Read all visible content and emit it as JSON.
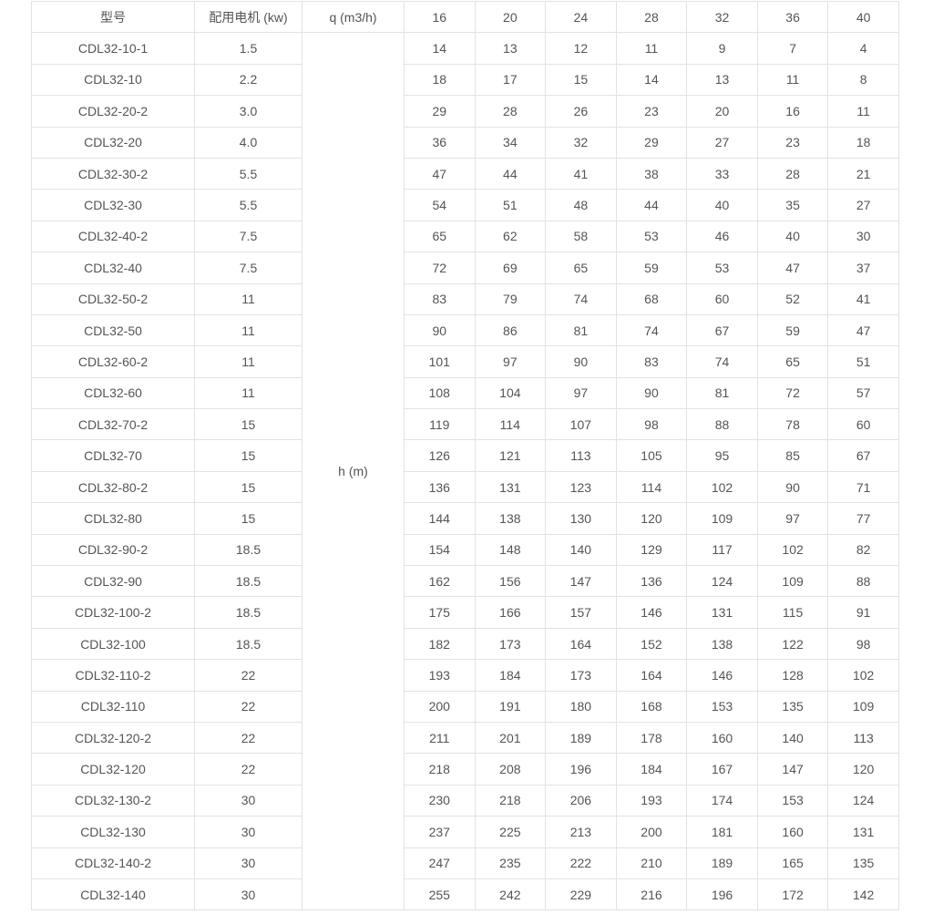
{
  "table": {
    "header": {
      "model": "型号",
      "motor": "配用电机 (kw)",
      "flow": "q (m3/h)",
      "flows": [
        "16",
        "20",
        "24",
        "28",
        "32",
        "36",
        "40"
      ]
    },
    "head_label": "h (m)",
    "rows": [
      {
        "model": "CDL32-10-1",
        "kw": "1.5",
        "h": [
          "14",
          "13",
          "12",
          "11",
          "9",
          "7",
          "4"
        ]
      },
      {
        "model": "CDL32-10",
        "kw": "2.2",
        "h": [
          "18",
          "17",
          "15",
          "14",
          "13",
          "11",
          "8"
        ]
      },
      {
        "model": "CDL32-20-2",
        "kw": "3.0",
        "h": [
          "29",
          "28",
          "26",
          "23",
          "20",
          "16",
          "11"
        ]
      },
      {
        "model": "CDL32-20",
        "kw": "4.0",
        "h": [
          "36",
          "34",
          "32",
          "29",
          "27",
          "23",
          "18"
        ]
      },
      {
        "model": "CDL32-30-2",
        "kw": "5.5",
        "h": [
          "47",
          "44",
          "41",
          "38",
          "33",
          "28",
          "21"
        ]
      },
      {
        "model": "CDL32-30",
        "kw": "5.5",
        "h": [
          "54",
          "51",
          "48",
          "44",
          "40",
          "35",
          "27"
        ]
      },
      {
        "model": "CDL32-40-2",
        "kw": "7.5",
        "h": [
          "65",
          "62",
          "58",
          "53",
          "46",
          "40",
          "30"
        ]
      },
      {
        "model": "CDL32-40",
        "kw": "7.5",
        "h": [
          "72",
          "69",
          "65",
          "59",
          "53",
          "47",
          "37"
        ]
      },
      {
        "model": "CDL32-50-2",
        "kw": "11",
        "h": [
          "83",
          "79",
          "74",
          "68",
          "60",
          "52",
          "41"
        ]
      },
      {
        "model": "CDL32-50",
        "kw": "11",
        "h": [
          "90",
          "86",
          "81",
          "74",
          "67",
          "59",
          "47"
        ]
      },
      {
        "model": "CDL32-60-2",
        "kw": "11",
        "h": [
          "101",
          "97",
          "90",
          "83",
          "74",
          "65",
          "51"
        ]
      },
      {
        "model": "CDL32-60",
        "kw": "11",
        "h": [
          "108",
          "104",
          "97",
          "90",
          "81",
          "72",
          "57"
        ]
      },
      {
        "model": "CDL32-70-2",
        "kw": "15",
        "h": [
          "119",
          "114",
          "107",
          "98",
          "88",
          "78",
          "60"
        ]
      },
      {
        "model": "CDL32-70",
        "kw": "15",
        "h": [
          "126",
          "121",
          "113",
          "105",
          "95",
          "85",
          "67"
        ]
      },
      {
        "model": "CDL32-80-2",
        "kw": "15",
        "h": [
          "136",
          "131",
          "123",
          "114",
          "102",
          "90",
          "71"
        ]
      },
      {
        "model": "CDL32-80",
        "kw": "15",
        "h": [
          "144",
          "138",
          "130",
          "120",
          "109",
          "97",
          "77"
        ]
      },
      {
        "model": "CDL32-90-2",
        "kw": "18.5",
        "h": [
          "154",
          "148",
          "140",
          "129",
          "117",
          "102",
          "82"
        ]
      },
      {
        "model": "CDL32-90",
        "kw": "18.5",
        "h": [
          "162",
          "156",
          "147",
          "136",
          "124",
          "109",
          "88"
        ]
      },
      {
        "model": "CDL32-100-2",
        "kw": "18.5",
        "h": [
          "175",
          "166",
          "157",
          "146",
          "131",
          "115",
          "91"
        ]
      },
      {
        "model": "CDL32-100",
        "kw": "18.5",
        "h": [
          "182",
          "173",
          "164",
          "152",
          "138",
          "122",
          "98"
        ]
      },
      {
        "model": "CDL32-110-2",
        "kw": "22",
        "h": [
          "193",
          "184",
          "173",
          "164",
          "146",
          "128",
          "102"
        ]
      },
      {
        "model": "CDL32-110",
        "kw": "22",
        "h": [
          "200",
          "191",
          "180",
          "168",
          "153",
          "135",
          "109"
        ]
      },
      {
        "model": "CDL32-120-2",
        "kw": "22",
        "h": [
          "211",
          "201",
          "189",
          "178",
          "160",
          "140",
          "113"
        ]
      },
      {
        "model": "CDL32-120",
        "kw": "22",
        "h": [
          "218",
          "208",
          "196",
          "184",
          "167",
          "147",
          "120"
        ]
      },
      {
        "model": "CDL32-130-2",
        "kw": "30",
        "h": [
          "230",
          "218",
          "206",
          "193",
          "174",
          "153",
          "124"
        ]
      },
      {
        "model": "CDL32-130",
        "kw": "30",
        "h": [
          "237",
          "225",
          "213",
          "200",
          "181",
          "160",
          "131"
        ]
      },
      {
        "model": "CDL32-140-2",
        "kw": "30",
        "h": [
          "247",
          "235",
          "222",
          "210",
          "189",
          "165",
          "135"
        ]
      },
      {
        "model": "CDL32-140",
        "kw": "30",
        "h": [
          "255",
          "242",
          "229",
          "216",
          "196",
          "172",
          "142"
        ]
      }
    ]
  }
}
